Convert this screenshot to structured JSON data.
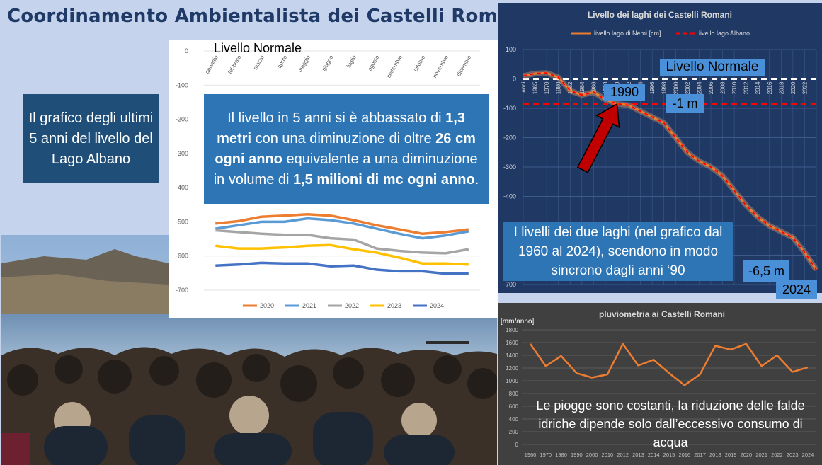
{
  "title": "Coordinamento Ambientalista dei Castelli Romani",
  "left_box": "Il grafico degli ultimi 5 anni del livello del Lago Albano",
  "mid_box": {
    "p1": "Il livello in 5 anni si è abbassato di ",
    "b1": "1,3 metri",
    "p2": " con una diminuzione di oltre ",
    "b2": "26 cm ogni anno",
    "p3": " equivalente a una diminuzione in volume di ",
    "b3": "1,5 milioni di mc ogni anno",
    "p4": "."
  },
  "levels_labels": {
    "livello_normale": "Livello Normale",
    "year_1990": "1990",
    "minus_1m": "-1 m",
    "minus_65m": "-6,5 m",
    "year_2024": "2024"
  },
  "sync_box": "I livelli dei due laghi (nel grafico dal 1960 al 2024), scendono in modo sincrono dagli anni ‘90",
  "rain_box": "Le piogge sono costanti, la riduzione delle falde idriche dipende solo dall’eccessivo consumo di acqua",
  "monthly_extra": {
    "livello_normale": "Livello Normale"
  },
  "colors": {
    "nemi": "#ed7d31",
    "albano": "#ff0000",
    "rain": "#ed7d31",
    "arrow": "#c00000"
  },
  "chart_data": [
    {
      "type": "line",
      "title": "",
      "categories": [
        "gennaio",
        "febbraio",
        "marzo",
        "aprile",
        "maggio",
        "giugno",
        "luglio",
        "agosto",
        "settembre",
        "ottobre",
        "novembre",
        "dicembre"
      ],
      "ylim": [
        -700,
        0
      ],
      "yticks": [
        0,
        -100,
        -200,
        -300,
        -400,
        -500,
        -600,
        -700
      ],
      "legend": "bottom",
      "series": [
        {
          "name": "2020",
          "color": "#ed7d31",
          "values": [
            -505,
            -498,
            -485,
            -482,
            -478,
            -482,
            -495,
            -510,
            -522,
            -535,
            -530,
            -522
          ]
        },
        {
          "name": "2021",
          "color": "#5b9bd5",
          "values": [
            -520,
            -510,
            -500,
            -500,
            -490,
            -495,
            -505,
            -520,
            -535,
            -548,
            -540,
            -528
          ]
        },
        {
          "name": "2022",
          "color": "#a5a5a5",
          "values": [
            -525,
            -530,
            -535,
            -538,
            -538,
            -548,
            -552,
            -578,
            -585,
            -590,
            -592,
            -580
          ]
        },
        {
          "name": "2023",
          "color": "#ffc000",
          "values": [
            -570,
            -578,
            -578,
            -575,
            -570,
            -568,
            -580,
            -590,
            -605,
            -622,
            -622,
            -625
          ]
        },
        {
          "name": "2024",
          "color": "#4472c4",
          "values": [
            -628,
            -625,
            -620,
            -622,
            -622,
            -630,
            -628,
            -640,
            -645,
            -645,
            -652,
            -652
          ]
        }
      ]
    },
    {
      "type": "line",
      "title": "Livello dei laghi dei Castelli Romani",
      "categories": [
        "anni",
        "1965",
        "1970",
        "1980",
        "1982",
        "1984",
        "1986",
        "1988",
        "1990",
        "1992",
        "1994",
        "1996",
        "1998",
        "2000",
        "2002",
        "2004",
        "2006",
        "2008",
        "2010",
        "2012",
        "2014",
        "2016",
        "2018",
        "2020",
        "2022",
        "2024"
      ],
      "xticks_shown": [
        "anni",
        "1965",
        "1970",
        "1980",
        "1982",
        "1984",
        "1986",
        "1988",
        "1990",
        "1992",
        "1994",
        "1996",
        "1998",
        "2000",
        "2002",
        "2004",
        "2006",
        "2008",
        "2010",
        "2012",
        "2014",
        "2016",
        "2018",
        "2020",
        "2022"
      ],
      "ylim": [
        -700,
        100
      ],
      "yticks": [
        100,
        0,
        -100,
        -200,
        -300,
        -400,
        -500,
        -600,
        -700
      ],
      "legend": "top",
      "series": [
        {
          "name": "livello lago di Nemi [cm]",
          "color": "#ed7d31",
          "style": "solid",
          "values": [
            10,
            18,
            20,
            5,
            -40,
            -55,
            -45,
            -70,
            -85,
            -90,
            -110,
            -130,
            -150,
            -200,
            -250,
            -280,
            -300,
            -330,
            -380,
            -430,
            -470,
            -500,
            -520,
            -540,
            -590,
            -650
          ]
        },
        {
          "name": "livello lago Albano",
          "color": "#ff0000",
          "style": "dashed",
          "values": [
            -85,
            -85,
            -85,
            -85,
            -85,
            -85,
            -85,
            -85,
            -85,
            -85,
            -85,
            -85,
            -85,
            -85,
            -85,
            -85,
            -85,
            -85,
            -85,
            -85,
            -85,
            -85,
            -85,
            -85,
            -85,
            -85
          ]
        },
        {
          "name": "Livello Normale",
          "color": "#ffffff",
          "style": "dashed",
          "values": [
            0,
            0,
            0,
            0,
            0,
            0,
            0,
            0,
            0,
            0,
            0,
            0,
            0,
            0,
            0,
            0,
            0,
            0,
            0,
            0,
            0,
            0,
            0,
            0,
            0,
            0
          ]
        }
      ]
    },
    {
      "type": "line",
      "title": "pluviometria ai Castelli Romani",
      "ylabel": "[mm/anno]",
      "categories": [
        "1960",
        "1970",
        "1980",
        "1990",
        "2000",
        "2010",
        "2012",
        "2013",
        "2014",
        "2015",
        "2016",
        "2017",
        "2018",
        "2019",
        "2020",
        "2021",
        "2022",
        "2023",
        "2024"
      ],
      "ylim": [
        0,
        1800
      ],
      "yticks": [
        0,
        200,
        400,
        600,
        800,
        1000,
        1200,
        1400,
        1600,
        1800
      ],
      "series": [
        {
          "name": "pluviometria",
          "color": "#ed7d31",
          "values": [
            1580,
            1230,
            1390,
            1120,
            1050,
            1100,
            1580,
            1240,
            1330,
            1120,
            930,
            1100,
            1550,
            1490,
            1580,
            1230,
            1400,
            1140,
            1210
          ]
        }
      ]
    }
  ]
}
